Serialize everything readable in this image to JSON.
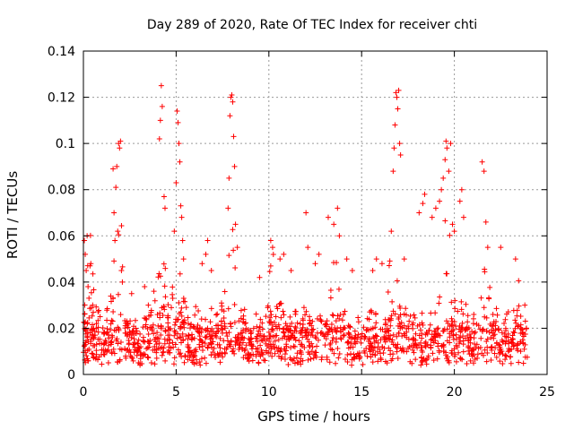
{
  "chart_data": {
    "type": "scatter",
    "title": "Day 289 of 2020, Rate Of TEC Index for receiver chti",
    "xlabel": "GPS time / hours",
    "ylabel": "ROTI / TECUs",
    "xlim": [
      0,
      25
    ],
    "ylim": [
      0,
      0.14
    ],
    "xticks": [
      0,
      5,
      10,
      15,
      20,
      25
    ],
    "xtick_labels": [
      "0",
      "5",
      "10",
      "15",
      "20",
      "25"
    ],
    "yticks": [
      0,
      0.02,
      0.04,
      0.06,
      0.08,
      0.1,
      0.12,
      0.14
    ],
    "ytick_labels": [
      "0",
      "0.02",
      "0.04",
      "0.06",
      "0.08",
      "0.1",
      "0.12",
      "0.14"
    ],
    "grid": true,
    "marker": "plus",
    "color": "#ff0000",
    "series": [
      {
        "name": "ROTI",
        "points": [
          [
            0.05,
            0.058
          ],
          [
            0.1,
            0.052
          ],
          [
            0.15,
            0.045
          ],
          [
            0.2,
            0.06
          ],
          [
            0.25,
            0.038
          ],
          [
            0.3,
            0.033
          ],
          [
            0.4,
            0.048
          ],
          [
            0.5,
            0.03
          ],
          [
            0.7,
            0.022
          ],
          [
            0.9,
            0.025
          ],
          [
            1.6,
            0.089
          ],
          [
            1.65,
            0.07
          ],
          [
            1.7,
            0.058
          ],
          [
            1.75,
            0.081
          ],
          [
            1.8,
            0.09
          ],
          [
            1.85,
            0.062
          ],
          [
            1.9,
            0.1
          ],
          [
            1.95,
            0.098
          ],
          [
            2.0,
            0.101
          ],
          [
            2.05,
            0.045
          ],
          [
            2.1,
            0.04
          ],
          [
            2.6,
            0.035
          ],
          [
            3.3,
            0.038
          ],
          [
            3.5,
            0.03
          ],
          [
            3.8,
            0.036
          ],
          [
            4.1,
            0.102
          ],
          [
            4.15,
            0.11
          ],
          [
            4.2,
            0.125
          ],
          [
            4.25,
            0.116
          ],
          [
            4.35,
            0.077
          ],
          [
            4.4,
            0.072
          ],
          [
            4.9,
            0.062
          ],
          [
            5.0,
            0.083
          ],
          [
            5.05,
            0.114
          ],
          [
            5.1,
            0.109
          ],
          [
            5.15,
            0.1
          ],
          [
            5.2,
            0.092
          ],
          [
            5.25,
            0.073
          ],
          [
            5.3,
            0.068
          ],
          [
            5.35,
            0.058
          ],
          [
            5.4,
            0.05
          ],
          [
            6.4,
            0.048
          ],
          [
            6.6,
            0.052
          ],
          [
            6.7,
            0.058
          ],
          [
            6.9,
            0.045
          ],
          [
            7.8,
            0.072
          ],
          [
            7.85,
            0.085
          ],
          [
            7.9,
            0.112
          ],
          [
            7.95,
            0.12
          ],
          [
            8.0,
            0.121
          ],
          [
            8.05,
            0.118
          ],
          [
            8.1,
            0.103
          ],
          [
            8.15,
            0.09
          ],
          [
            8.2,
            0.065
          ],
          [
            8.3,
            0.055
          ],
          [
            9.5,
            0.042
          ],
          [
            10.1,
            0.058
          ],
          [
            10.2,
            0.055
          ],
          [
            10.6,
            0.05
          ],
          [
            10.8,
            0.052
          ],
          [
            11.2,
            0.045
          ],
          [
            12.0,
            0.07
          ],
          [
            12.1,
            0.055
          ],
          [
            12.5,
            0.048
          ],
          [
            12.7,
            0.052
          ],
          [
            13.2,
            0.068
          ],
          [
            13.5,
            0.065
          ],
          [
            13.7,
            0.072
          ],
          [
            13.8,
            0.06
          ],
          [
            14.2,
            0.05
          ],
          [
            14.5,
            0.045
          ],
          [
            15.6,
            0.045
          ],
          [
            15.8,
            0.05
          ],
          [
            16.1,
            0.048
          ],
          [
            16.6,
            0.062
          ],
          [
            16.7,
            0.088
          ],
          [
            16.75,
            0.098
          ],
          [
            16.8,
            0.108
          ],
          [
            16.85,
            0.122
          ],
          [
            16.9,
            0.12
          ],
          [
            16.95,
            0.115
          ],
          [
            17.0,
            0.123
          ],
          [
            17.05,
            0.1
          ],
          [
            17.1,
            0.095
          ],
          [
            17.3,
            0.05
          ],
          [
            18.1,
            0.07
          ],
          [
            18.3,
            0.074
          ],
          [
            18.4,
            0.078
          ],
          [
            18.8,
            0.068
          ],
          [
            19.0,
            0.072
          ],
          [
            19.2,
            0.075
          ],
          [
            19.3,
            0.08
          ],
          [
            19.4,
            0.085
          ],
          [
            19.5,
            0.093
          ],
          [
            19.55,
            0.101
          ],
          [
            19.6,
            0.098
          ],
          [
            19.7,
            0.088
          ],
          [
            19.8,
            0.1
          ],
          [
            19.9,
            0.065
          ],
          [
            20.0,
            0.062
          ],
          [
            20.3,
            0.075
          ],
          [
            20.4,
            0.08
          ],
          [
            20.5,
            0.068
          ],
          [
            21.5,
            0.092
          ],
          [
            21.6,
            0.088
          ],
          [
            21.7,
            0.066
          ],
          [
            21.8,
            0.055
          ],
          [
            22.5,
            0.055
          ],
          [
            23.3,
            0.05
          ],
          [
            23.8,
            0.03
          ]
        ]
      }
    ]
  }
}
